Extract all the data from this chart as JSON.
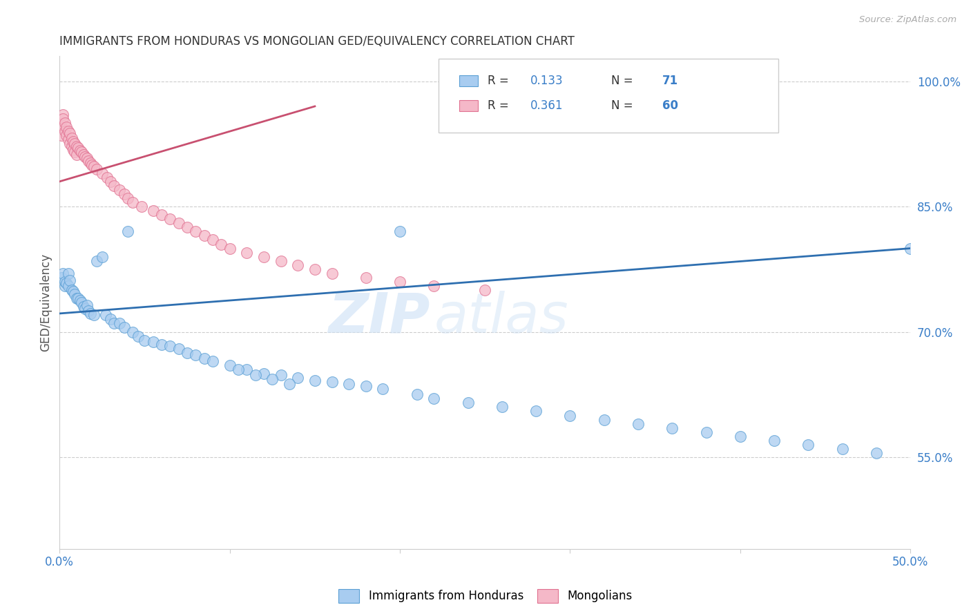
{
  "title": "IMMIGRANTS FROM HONDURAS VS MONGOLIAN GED/EQUIVALENCY CORRELATION CHART",
  "source": "Source: ZipAtlas.com",
  "ylabel": "GED/Equivalency",
  "legend_label_blue": "Immigrants from Honduras",
  "legend_label_pink": "Mongolians",
  "R_blue": "0.133",
  "N_blue": "71",
  "R_pink": "0.361",
  "N_pink": "60",
  "xlim": [
    0.0,
    0.5
  ],
  "ylim": [
    0.44,
    1.03
  ],
  "yticks": [
    0.55,
    0.7,
    0.85,
    1.0
  ],
  "ytick_labels": [
    "55.0%",
    "70.0%",
    "85.0%",
    "100.0%"
  ],
  "color_blue_fill": "#a8ccf0",
  "color_pink_fill": "#f5b8c8",
  "color_blue_edge": "#5a9fd4",
  "color_pink_edge": "#e07090",
  "color_blue_line": "#2e6fb0",
  "color_pink_line": "#c85070",
  "color_text_blue": "#3a7ec8",
  "color_title": "#333333",
  "color_source": "#aaaaaa",
  "color_grid": "#cccccc",
  "watermark_zip": "ZIP",
  "watermark_atlas": "atlas",
  "blue_scatter_x": [
    0.001,
    0.002,
    0.003,
    0.003,
    0.004,
    0.005,
    0.005,
    0.006,
    0.007,
    0.008,
    0.009,
    0.01,
    0.011,
    0.012,
    0.013,
    0.014,
    0.015,
    0.016,
    0.017,
    0.018,
    0.02,
    0.022,
    0.025,
    0.027,
    0.03,
    0.032,
    0.035,
    0.038,
    0.04,
    0.043,
    0.046,
    0.05,
    0.055,
    0.06,
    0.065,
    0.07,
    0.075,
    0.08,
    0.085,
    0.09,
    0.1,
    0.11,
    0.12,
    0.13,
    0.14,
    0.15,
    0.16,
    0.17,
    0.18,
    0.19,
    0.2,
    0.21,
    0.22,
    0.24,
    0.26,
    0.28,
    0.3,
    0.32,
    0.34,
    0.36,
    0.38,
    0.4,
    0.42,
    0.44,
    0.46,
    0.48,
    0.5,
    0.105,
    0.115,
    0.125,
    0.135
  ],
  "blue_scatter_y": [
    0.765,
    0.77,
    0.755,
    0.76,
    0.758,
    0.77,
    0.755,
    0.762,
    0.75,
    0.748,
    0.745,
    0.74,
    0.74,
    0.738,
    0.735,
    0.73,
    0.728,
    0.732,
    0.725,
    0.722,
    0.72,
    0.785,
    0.79,
    0.72,
    0.715,
    0.71,
    0.71,
    0.705,
    0.82,
    0.7,
    0.695,
    0.69,
    0.688,
    0.685,
    0.683,
    0.68,
    0.675,
    0.672,
    0.668,
    0.665,
    0.66,
    0.655,
    0.65,
    0.648,
    0.645,
    0.642,
    0.64,
    0.638,
    0.635,
    0.632,
    0.82,
    0.625,
    0.62,
    0.615,
    0.61,
    0.605,
    0.6,
    0.595,
    0.59,
    0.585,
    0.58,
    0.575,
    0.57,
    0.565,
    0.56,
    0.555,
    0.8,
    0.655,
    0.648,
    0.643,
    0.638
  ],
  "pink_scatter_x": [
    0.001,
    0.001,
    0.002,
    0.002,
    0.003,
    0.003,
    0.004,
    0.004,
    0.005,
    0.005,
    0.006,
    0.006,
    0.007,
    0.007,
    0.008,
    0.008,
    0.009,
    0.009,
    0.01,
    0.01,
    0.011,
    0.012,
    0.013,
    0.014,
    0.015,
    0.016,
    0.017,
    0.018,
    0.019,
    0.02,
    0.022,
    0.025,
    0.028,
    0.03,
    0.032,
    0.035,
    0.038,
    0.04,
    0.043,
    0.048,
    0.055,
    0.06,
    0.065,
    0.07,
    0.075,
    0.08,
    0.085,
    0.09,
    0.095,
    0.1,
    0.11,
    0.12,
    0.13,
    0.14,
    0.15,
    0.16,
    0.18,
    0.2,
    0.22,
    0.25
  ],
  "pink_scatter_y": [
    0.945,
    0.935,
    0.96,
    0.955,
    0.95,
    0.94,
    0.945,
    0.935,
    0.94,
    0.93,
    0.938,
    0.925,
    0.932,
    0.922,
    0.928,
    0.918,
    0.925,
    0.915,
    0.922,
    0.912,
    0.92,
    0.917,
    0.915,
    0.912,
    0.91,
    0.908,
    0.905,
    0.902,
    0.9,
    0.898,
    0.895,
    0.89,
    0.885,
    0.88,
    0.875,
    0.87,
    0.865,
    0.86,
    0.855,
    0.85,
    0.845,
    0.84,
    0.835,
    0.83,
    0.825,
    0.82,
    0.815,
    0.81,
    0.805,
    0.8,
    0.795,
    0.79,
    0.785,
    0.78,
    0.775,
    0.77,
    0.765,
    0.76,
    0.755,
    0.75
  ],
  "blue_line_x": [
    0.0,
    0.5
  ],
  "blue_line_y": [
    0.722,
    0.8
  ],
  "pink_line_x": [
    0.0,
    0.15
  ],
  "pink_line_y": [
    0.88,
    0.97
  ]
}
